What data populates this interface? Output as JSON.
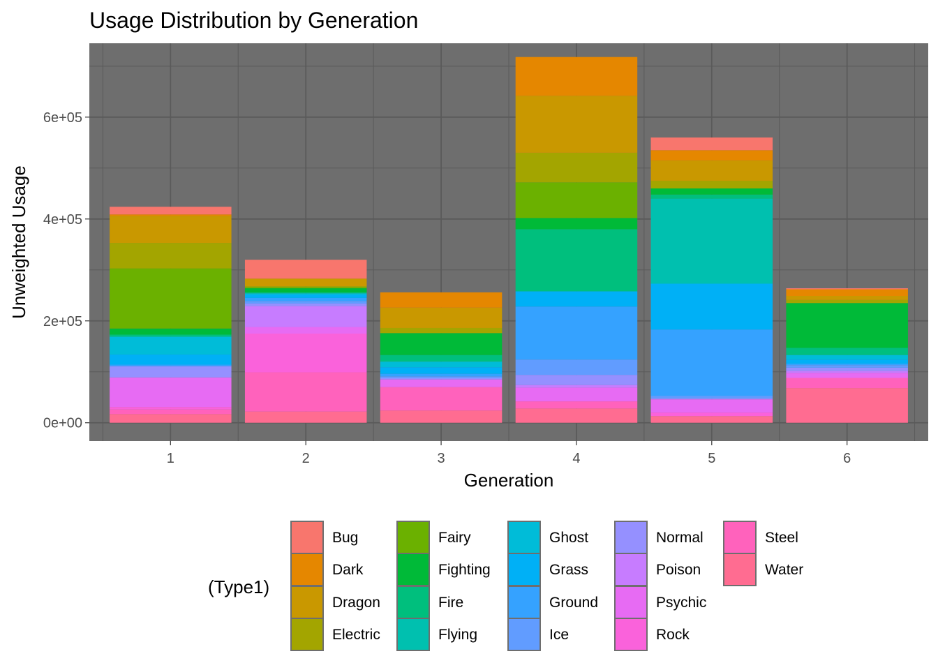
{
  "chart_data": {
    "type": "bar",
    "stacked": true,
    "title": "Usage Distribution by Generation",
    "xlabel": "Generation",
    "ylabel": "Unweighted Usage",
    "categories": [
      "1",
      "2",
      "3",
      "4",
      "5",
      "6"
    ],
    "y_ticks": [
      {
        "value": 0,
        "label": "0e+00"
      },
      {
        "value": 200000,
        "label": "2e+05"
      },
      {
        "value": 400000,
        "label": "4e+05"
      },
      {
        "value": 600000,
        "label": "6e+05"
      }
    ],
    "ylim": [
      -36000,
      745000
    ],
    "grid": true,
    "panel_background": "#6e6e6e",
    "grid_color": "#5a5a5a",
    "legend": {
      "title": "(Type1)",
      "position": "bottom"
    },
    "series": [
      {
        "name": "Bug",
        "color": "#F8766D",
        "values": [
          15000,
          37000,
          0,
          0,
          25000,
          2000
        ]
      },
      {
        "name": "Dark",
        "color": "#E58700",
        "values": [
          3000,
          0,
          30000,
          76000,
          20000,
          13000
        ]
      },
      {
        "name": "Dragon",
        "color": "#C99800",
        "values": [
          53000,
          15000,
          40000,
          112000,
          40000,
          8000
        ]
      },
      {
        "name": "Electric",
        "color": "#A3A500",
        "values": [
          50000,
          2000,
          10000,
          58000,
          15000,
          6000
        ]
      },
      {
        "name": "Fairy",
        "color": "#6BB100",
        "values": [
          118000,
          2000,
          0,
          70000,
          0,
          0
        ]
      },
      {
        "name": "Fighting",
        "color": "#00BA38",
        "values": [
          12000,
          8000,
          43000,
          22000,
          12000,
          88000
        ]
      },
      {
        "name": "Fire",
        "color": "#00BF7D",
        "values": [
          4000,
          2000,
          12000,
          122000,
          8000,
          14000
        ]
      },
      {
        "name": "Flying",
        "color": "#00C0AF",
        "values": [
          0,
          0,
          2000,
          0,
          167000,
          0
        ]
      },
      {
        "name": "Ghost",
        "color": "#00BCD8",
        "values": [
          35000,
          3000,
          10000,
          0,
          0,
          9000
        ]
      },
      {
        "name": "Grass",
        "color": "#00B0F6",
        "values": [
          20000,
          6000,
          13000,
          30000,
          90000,
          8000
        ]
      },
      {
        "name": "Ground",
        "color": "#35A2FF",
        "values": [
          3000,
          6000,
          5000,
          104000,
          130000,
          3000
        ]
      },
      {
        "name": "Ice",
        "color": "#619CFF",
        "values": [
          0,
          5000,
          3000,
          30000,
          5000,
          5000
        ]
      },
      {
        "name": "Normal",
        "color": "#9590FF",
        "values": [
          22000,
          5000,
          3000,
          20000,
          2000,
          6000
        ]
      },
      {
        "name": "Poison",
        "color": "#C77CFF",
        "values": [
          0,
          41000,
          0,
          5000,
          0,
          4000
        ]
      },
      {
        "name": "Psychic",
        "color": "#E76BF3",
        "values": [
          58000,
          13000,
          15000,
          27000,
          26000,
          10000
        ]
      },
      {
        "name": "Rock",
        "color": "#FA62DB",
        "values": [
          5000,
          76000,
          0,
          0,
          7000,
          0
        ]
      },
      {
        "name": "Steel",
        "color": "#FF62BC",
        "values": [
          9000,
          77000,
          46000,
          14000,
          0,
          20000
        ]
      },
      {
        "name": "Water",
        "color": "#FF6C91",
        "values": [
          17000,
          22000,
          24000,
          28000,
          13000,
          68000
        ]
      }
    ]
  }
}
